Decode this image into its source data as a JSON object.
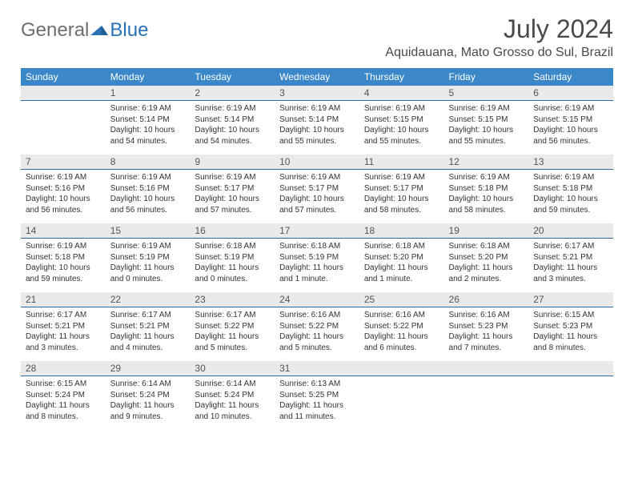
{
  "logo": {
    "text_general": "General",
    "text_blue": "Blue"
  },
  "title": "July 2024",
  "location": "Aquidauana, Mato Grosso do Sul, Brazil",
  "colors": {
    "header_bg": "#3b87c8",
    "header_text": "#ffffff",
    "daynum_bg": "#eaeaea",
    "rule": "#2a6aa3",
    "logo_gray": "#6e6e6e",
    "logo_blue": "#2a72b5",
    "page_bg": "#ffffff",
    "body_text": "#333333"
  },
  "weekdays": [
    "Sunday",
    "Monday",
    "Tuesday",
    "Wednesday",
    "Thursday",
    "Friday",
    "Saturday"
  ],
  "layout": {
    "leading_blanks": 1,
    "days_in_month": 31
  },
  "days": {
    "1": {
      "sunrise": "Sunrise: 6:19 AM",
      "sunset": "Sunset: 5:14 PM",
      "daylight": "Daylight: 10 hours and 54 minutes."
    },
    "2": {
      "sunrise": "Sunrise: 6:19 AM",
      "sunset": "Sunset: 5:14 PM",
      "daylight": "Daylight: 10 hours and 54 minutes."
    },
    "3": {
      "sunrise": "Sunrise: 6:19 AM",
      "sunset": "Sunset: 5:14 PM",
      "daylight": "Daylight: 10 hours and 55 minutes."
    },
    "4": {
      "sunrise": "Sunrise: 6:19 AM",
      "sunset": "Sunset: 5:15 PM",
      "daylight": "Daylight: 10 hours and 55 minutes."
    },
    "5": {
      "sunrise": "Sunrise: 6:19 AM",
      "sunset": "Sunset: 5:15 PM",
      "daylight": "Daylight: 10 hours and 55 minutes."
    },
    "6": {
      "sunrise": "Sunrise: 6:19 AM",
      "sunset": "Sunset: 5:15 PM",
      "daylight": "Daylight: 10 hours and 56 minutes."
    },
    "7": {
      "sunrise": "Sunrise: 6:19 AM",
      "sunset": "Sunset: 5:16 PM",
      "daylight": "Daylight: 10 hours and 56 minutes."
    },
    "8": {
      "sunrise": "Sunrise: 6:19 AM",
      "sunset": "Sunset: 5:16 PM",
      "daylight": "Daylight: 10 hours and 56 minutes."
    },
    "9": {
      "sunrise": "Sunrise: 6:19 AM",
      "sunset": "Sunset: 5:17 PM",
      "daylight": "Daylight: 10 hours and 57 minutes."
    },
    "10": {
      "sunrise": "Sunrise: 6:19 AM",
      "sunset": "Sunset: 5:17 PM",
      "daylight": "Daylight: 10 hours and 57 minutes."
    },
    "11": {
      "sunrise": "Sunrise: 6:19 AM",
      "sunset": "Sunset: 5:17 PM",
      "daylight": "Daylight: 10 hours and 58 minutes."
    },
    "12": {
      "sunrise": "Sunrise: 6:19 AM",
      "sunset": "Sunset: 5:18 PM",
      "daylight": "Daylight: 10 hours and 58 minutes."
    },
    "13": {
      "sunrise": "Sunrise: 6:19 AM",
      "sunset": "Sunset: 5:18 PM",
      "daylight": "Daylight: 10 hours and 59 minutes."
    },
    "14": {
      "sunrise": "Sunrise: 6:19 AM",
      "sunset": "Sunset: 5:18 PM",
      "daylight": "Daylight: 10 hours and 59 minutes."
    },
    "15": {
      "sunrise": "Sunrise: 6:19 AM",
      "sunset": "Sunset: 5:19 PM",
      "daylight": "Daylight: 11 hours and 0 minutes."
    },
    "16": {
      "sunrise": "Sunrise: 6:18 AM",
      "sunset": "Sunset: 5:19 PM",
      "daylight": "Daylight: 11 hours and 0 minutes."
    },
    "17": {
      "sunrise": "Sunrise: 6:18 AM",
      "sunset": "Sunset: 5:19 PM",
      "daylight": "Daylight: 11 hours and 1 minute."
    },
    "18": {
      "sunrise": "Sunrise: 6:18 AM",
      "sunset": "Sunset: 5:20 PM",
      "daylight": "Daylight: 11 hours and 1 minute."
    },
    "19": {
      "sunrise": "Sunrise: 6:18 AM",
      "sunset": "Sunset: 5:20 PM",
      "daylight": "Daylight: 11 hours and 2 minutes."
    },
    "20": {
      "sunrise": "Sunrise: 6:17 AM",
      "sunset": "Sunset: 5:21 PM",
      "daylight": "Daylight: 11 hours and 3 minutes."
    },
    "21": {
      "sunrise": "Sunrise: 6:17 AM",
      "sunset": "Sunset: 5:21 PM",
      "daylight": "Daylight: 11 hours and 3 minutes."
    },
    "22": {
      "sunrise": "Sunrise: 6:17 AM",
      "sunset": "Sunset: 5:21 PM",
      "daylight": "Daylight: 11 hours and 4 minutes."
    },
    "23": {
      "sunrise": "Sunrise: 6:17 AM",
      "sunset": "Sunset: 5:22 PM",
      "daylight": "Daylight: 11 hours and 5 minutes."
    },
    "24": {
      "sunrise": "Sunrise: 6:16 AM",
      "sunset": "Sunset: 5:22 PM",
      "daylight": "Daylight: 11 hours and 5 minutes."
    },
    "25": {
      "sunrise": "Sunrise: 6:16 AM",
      "sunset": "Sunset: 5:22 PM",
      "daylight": "Daylight: 11 hours and 6 minutes."
    },
    "26": {
      "sunrise": "Sunrise: 6:16 AM",
      "sunset": "Sunset: 5:23 PM",
      "daylight": "Daylight: 11 hours and 7 minutes."
    },
    "27": {
      "sunrise": "Sunrise: 6:15 AM",
      "sunset": "Sunset: 5:23 PM",
      "daylight": "Daylight: 11 hours and 8 minutes."
    },
    "28": {
      "sunrise": "Sunrise: 6:15 AM",
      "sunset": "Sunset: 5:24 PM",
      "daylight": "Daylight: 11 hours and 8 minutes."
    },
    "29": {
      "sunrise": "Sunrise: 6:14 AM",
      "sunset": "Sunset: 5:24 PM",
      "daylight": "Daylight: 11 hours and 9 minutes."
    },
    "30": {
      "sunrise": "Sunrise: 6:14 AM",
      "sunset": "Sunset: 5:24 PM",
      "daylight": "Daylight: 11 hours and 10 minutes."
    },
    "31": {
      "sunrise": "Sunrise: 6:13 AM",
      "sunset": "Sunset: 5:25 PM",
      "daylight": "Daylight: 11 hours and 11 minutes."
    }
  }
}
